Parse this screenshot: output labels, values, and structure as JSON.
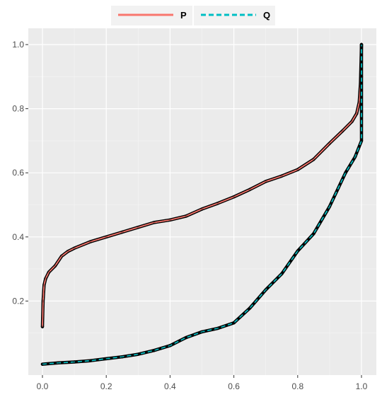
{
  "chart_data": {
    "type": "line",
    "title": "",
    "xlabel": "",
    "ylabel": "",
    "xlim": [
      0.0,
      1.0
    ],
    "ylim": [
      0.0,
      1.0
    ],
    "x_ticks": [
      0.0,
      0.2,
      0.4,
      0.6,
      0.8,
      1.0
    ],
    "x_tick_labels": [
      "0.0",
      "0.2",
      "0.4",
      "0.6",
      "0.8",
      "1.0"
    ],
    "y_ticks": [
      0.2,
      0.4,
      0.6,
      0.8,
      1.0
    ],
    "y_tick_labels": [
      "0.2",
      "0.4",
      "0.6",
      "0.8",
      "1.0"
    ],
    "grid": true,
    "legend_position": "top",
    "series": [
      {
        "name": "P",
        "color": "#F8766D",
        "line_style": "solid",
        "points": [
          [
            0.0,
            0.12
          ],
          [
            0.002,
            0.2
          ],
          [
            0.005,
            0.25
          ],
          [
            0.01,
            0.27
          ],
          [
            0.02,
            0.29
          ],
          [
            0.04,
            0.31
          ],
          [
            0.06,
            0.34
          ],
          [
            0.08,
            0.355
          ],
          [
            0.1,
            0.365
          ],
          [
            0.15,
            0.385
          ],
          [
            0.2,
            0.4
          ],
          [
            0.25,
            0.415
          ],
          [
            0.3,
            0.43
          ],
          [
            0.35,
            0.445
          ],
          [
            0.4,
            0.453
          ],
          [
            0.45,
            0.465
          ],
          [
            0.5,
            0.487
          ],
          [
            0.55,
            0.505
          ],
          [
            0.6,
            0.525
          ],
          [
            0.65,
            0.548
          ],
          [
            0.7,
            0.573
          ],
          [
            0.75,
            0.59
          ],
          [
            0.8,
            0.61
          ],
          [
            0.85,
            0.642
          ],
          [
            0.9,
            0.692
          ],
          [
            0.94,
            0.73
          ],
          [
            0.97,
            0.76
          ],
          [
            0.985,
            0.785
          ],
          [
            0.993,
            0.82
          ],
          [
            0.997,
            0.88
          ],
          [
            1.0,
            1.0
          ]
        ]
      },
      {
        "name": "Q",
        "color": "#00BFC4",
        "line_style": "dashed",
        "points": [
          [
            0.0,
            0.003
          ],
          [
            0.05,
            0.007
          ],
          [
            0.1,
            0.01
          ],
          [
            0.15,
            0.014
          ],
          [
            0.2,
            0.02
          ],
          [
            0.25,
            0.026
          ],
          [
            0.3,
            0.034
          ],
          [
            0.35,
            0.046
          ],
          [
            0.4,
            0.061
          ],
          [
            0.45,
            0.086
          ],
          [
            0.5,
            0.104
          ],
          [
            0.55,
            0.115
          ],
          [
            0.6,
            0.132
          ],
          [
            0.65,
            0.178
          ],
          [
            0.7,
            0.235
          ],
          [
            0.75,
            0.285
          ],
          [
            0.8,
            0.356
          ],
          [
            0.85,
            0.41
          ],
          [
            0.9,
            0.495
          ],
          [
            0.95,
            0.6
          ],
          [
            0.98,
            0.65
          ],
          [
            1.0,
            0.7
          ],
          [
            1.0,
            0.9
          ],
          [
            1.0,
            1.0
          ]
        ]
      }
    ]
  }
}
